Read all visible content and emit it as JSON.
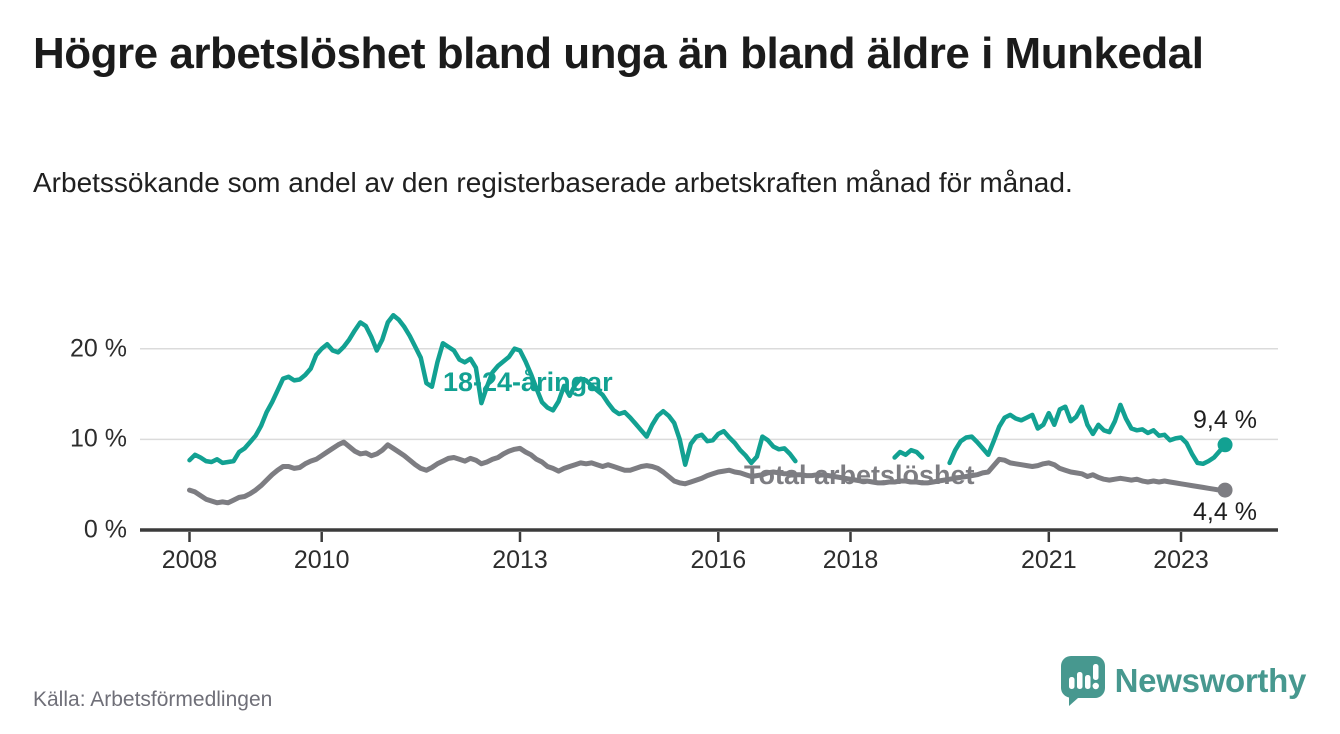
{
  "header": {
    "title": "Högre arbetslöshet bland unga än bland äldre i Munkedal",
    "subtitle": "Arbetssökande som andel av den registerbaserade arbetskraften månad för månad."
  },
  "source": {
    "label": "Källa: Arbetsförmedlingen"
  },
  "branding": {
    "logo_text": "Newsworthy",
    "logo_color": "#47988f",
    "logo_icon": "bar-chart-speech-bubble"
  },
  "colors": {
    "youth_line": "#12a192",
    "total_line": "#7d7d82",
    "gridline": "#dbdbdb",
    "axis": "#3b3b3b",
    "text_dark": "#1f1f1f"
  },
  "chart_data": {
    "type": "line",
    "title": "Högre arbetslöshet bland unga än bland äldre i Munkedal",
    "unit": "%",
    "frequency": "monthly",
    "x_start": "2008-01",
    "x_end": "2023-09",
    "ylim": [
      0,
      25
    ],
    "grid": "horizontal",
    "yticks": [
      0,
      10,
      20
    ],
    "ytick_labels": [
      "0 %",
      "10 %",
      "20 %"
    ],
    "xticks": [
      2008,
      2010,
      2013,
      2016,
      2018,
      2021,
      2023
    ],
    "legend_position": "inline-labels",
    "series": [
      {
        "name": "18-24-åringar",
        "color": "#12a192",
        "end_value": 9.4,
        "end_label": "9,4 %",
        "values": [
          7.7,
          8.3,
          8.0,
          7.6,
          7.5,
          7.8,
          7.4,
          7.5,
          7.6,
          8.6,
          9.0,
          9.7,
          10.4,
          11.5,
          13.0,
          14.1,
          15.4,
          16.7,
          16.9,
          16.5,
          16.6,
          17.1,
          17.8,
          19.3,
          20.0,
          20.5,
          19.8,
          19.6,
          20.2,
          21.0,
          22.0,
          22.9,
          22.5,
          21.3,
          19.8,
          21.0,
          22.9,
          23.7,
          23.2,
          22.4,
          21.4,
          20.2,
          19.0,
          16.2,
          15.8,
          18.5,
          20.6,
          20.2,
          19.8,
          18.8,
          18.5,
          18.9,
          17.9,
          14.0,
          15.8,
          17.4,
          18.1,
          18.6,
          19.1,
          20.0,
          19.8,
          18.6,
          17.2,
          15.6,
          14.1,
          13.5,
          13.2,
          14.2,
          15.9,
          14.8,
          16.0,
          16.7,
          16.5,
          15.9,
          15.4,
          14.9,
          14.0,
          13.2,
          12.8,
          13.0,
          12.4,
          11.7,
          11.0,
          10.3,
          11.6,
          12.6,
          13.1,
          12.6,
          11.8,
          10.0,
          7.2,
          9.5,
          10.3,
          10.5,
          9.8,
          9.9,
          10.6,
          10.9,
          10.2,
          9.6,
          8.8,
          8.2,
          7.4,
          8.1,
          10.3,
          9.9,
          9.2,
          8.9,
          9.0,
          8.4,
          7.6,
          null,
          null,
          null,
          null,
          null,
          null,
          null,
          null,
          null,
          null,
          null,
          null,
          null,
          null,
          null,
          null,
          null,
          8.0,
          8.6,
          8.3,
          8.8,
          8.6,
          8.0,
          null,
          null,
          null,
          null,
          7.4,
          8.8,
          9.8,
          10.2,
          10.3,
          9.7,
          9.0,
          8.3,
          9.8,
          11.4,
          12.4,
          12.7,
          12.3,
          12.1,
          12.4,
          12.7,
          11.2,
          11.6,
          12.9,
          11.6,
          13.3,
          13.6,
          12.0,
          12.5,
          13.6,
          11.6,
          10.6,
          11.6,
          11.0,
          10.8,
          12.0,
          13.8,
          12.3,
          11.2,
          11.0,
          11.1,
          10.7,
          11.0,
          10.4,
          10.5,
          9.9,
          10.1,
          10.2,
          9.6,
          8.4,
          7.4,
          7.3,
          7.6,
          8.0,
          8.7,
          9.4
        ]
      },
      {
        "name": "Total arbetslöshet",
        "color": "#7d7d82",
        "end_value": 4.4,
        "end_label": "4,4 %",
        "values": [
          4.4,
          4.2,
          3.8,
          3.4,
          3.2,
          3.0,
          3.1,
          3.0,
          3.3,
          3.6,
          3.7,
          4.0,
          4.4,
          4.9,
          5.5,
          6.1,
          6.6,
          7.0,
          7.0,
          6.8,
          6.9,
          7.3,
          7.6,
          7.8,
          8.2,
          8.6,
          9.0,
          9.4,
          9.7,
          9.2,
          8.7,
          8.4,
          8.5,
          8.2,
          8.4,
          8.8,
          9.4,
          9.0,
          8.6,
          8.2,
          7.7,
          7.2,
          6.8,
          6.6,
          6.9,
          7.3,
          7.6,
          7.9,
          8.0,
          7.8,
          7.6,
          7.9,
          7.7,
          7.3,
          7.5,
          7.8,
          8.0,
          8.4,
          8.7,
          8.9,
          9.0,
          8.6,
          8.3,
          7.8,
          7.5,
          7.0,
          6.8,
          6.5,
          6.8,
          7.0,
          7.2,
          7.4,
          7.3,
          7.4,
          7.2,
          7.0,
          7.2,
          7.0,
          6.8,
          6.6,
          6.6,
          6.8,
          7.0,
          7.1,
          7.0,
          6.8,
          6.4,
          5.9,
          5.4,
          5.2,
          5.1,
          5.3,
          5.5,
          5.7,
          6.0,
          6.2,
          6.4,
          6.5,
          6.6,
          6.4,
          6.3,
          6.1,
          5.9,
          6.0,
          6.1,
          6.3,
          6.4,
          6.3,
          6.2,
          6.2,
          6.1,
          6.1,
          6.0,
          6.0,
          6.1,
          6.1,
          6.0,
          5.9,
          5.8,
          5.7,
          5.6,
          5.5,
          5.4,
          5.4,
          5.3,
          5.2,
          5.2,
          5.3,
          5.3,
          5.4,
          5.4,
          5.3,
          5.3,
          5.2,
          5.2,
          5.3,
          5.4,
          5.5,
          5.6,
          5.7,
          5.8,
          5.9,
          6.0,
          6.1,
          6.3,
          6.4,
          7.1,
          7.8,
          7.7,
          7.4,
          7.3,
          7.2,
          7.1,
          7.0,
          7.1,
          7.3,
          7.4,
          7.2,
          6.8,
          6.6,
          6.4,
          6.3,
          6.2,
          5.9,
          6.1,
          5.8,
          5.6,
          5.5,
          5.6,
          5.7,
          5.6,
          5.5,
          5.6,
          5.4,
          5.3,
          5.4,
          5.3,
          5.4,
          5.3,
          5.2,
          5.1,
          5.0,
          4.9,
          4.8,
          4.7,
          4.6,
          4.5,
          4.4,
          4.4
        ]
      }
    ]
  }
}
